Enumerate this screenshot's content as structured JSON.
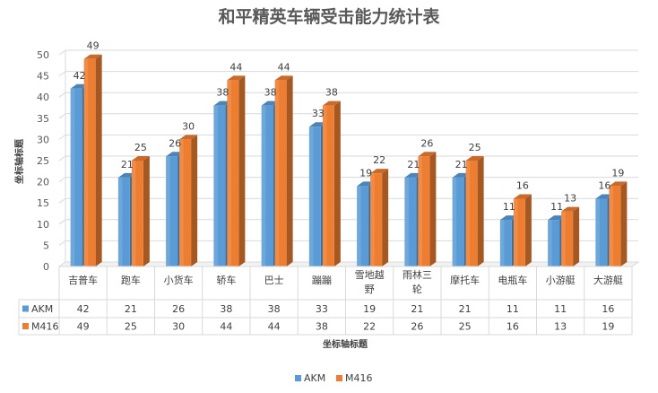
{
  "chart_data": {
    "type": "bar",
    "title": "和平精英车辆受击能力统计表",
    "xlabel": "坐标轴标题",
    "ylabel": "坐标轴标题",
    "categories": [
      "吉普车",
      "跑车",
      "小货车",
      "轿车",
      "巴士",
      "蹦蹦",
      "雪地越野",
      "雨林三轮",
      "摩托车",
      "电瓶车",
      "小游艇",
      "大游艇"
    ],
    "category_display": [
      [
        "吉普车"
      ],
      [
        "跑车"
      ],
      [
        "小货车"
      ],
      [
        "轿车"
      ],
      [
        "巴士"
      ],
      [
        "蹦蹦"
      ],
      [
        "雪地越",
        "野"
      ],
      [
        "雨林三",
        "轮"
      ],
      [
        "摩托车"
      ],
      [
        "电瓶车"
      ],
      [
        "小游艇"
      ],
      [
        "大游艇"
      ]
    ],
    "series": [
      {
        "name": "AKM",
        "values": [
          42,
          21,
          26,
          38,
          38,
          33,
          19,
          21,
          21,
          11,
          11,
          16
        ],
        "color": "#5B9BD5"
      },
      {
        "name": "M416",
        "values": [
          49,
          25,
          30,
          44,
          44,
          38,
          22,
          26,
          25,
          16,
          13,
          19
        ],
        "color": "#ED7D31"
      }
    ],
    "ylim": [
      0,
      50
    ],
    "yticks": [
      0,
      5,
      10,
      15,
      20,
      25,
      30,
      35,
      40,
      45,
      50
    ],
    "grid": true,
    "data_table": true,
    "legend_position": "bottom",
    "bar_style": "3d"
  }
}
